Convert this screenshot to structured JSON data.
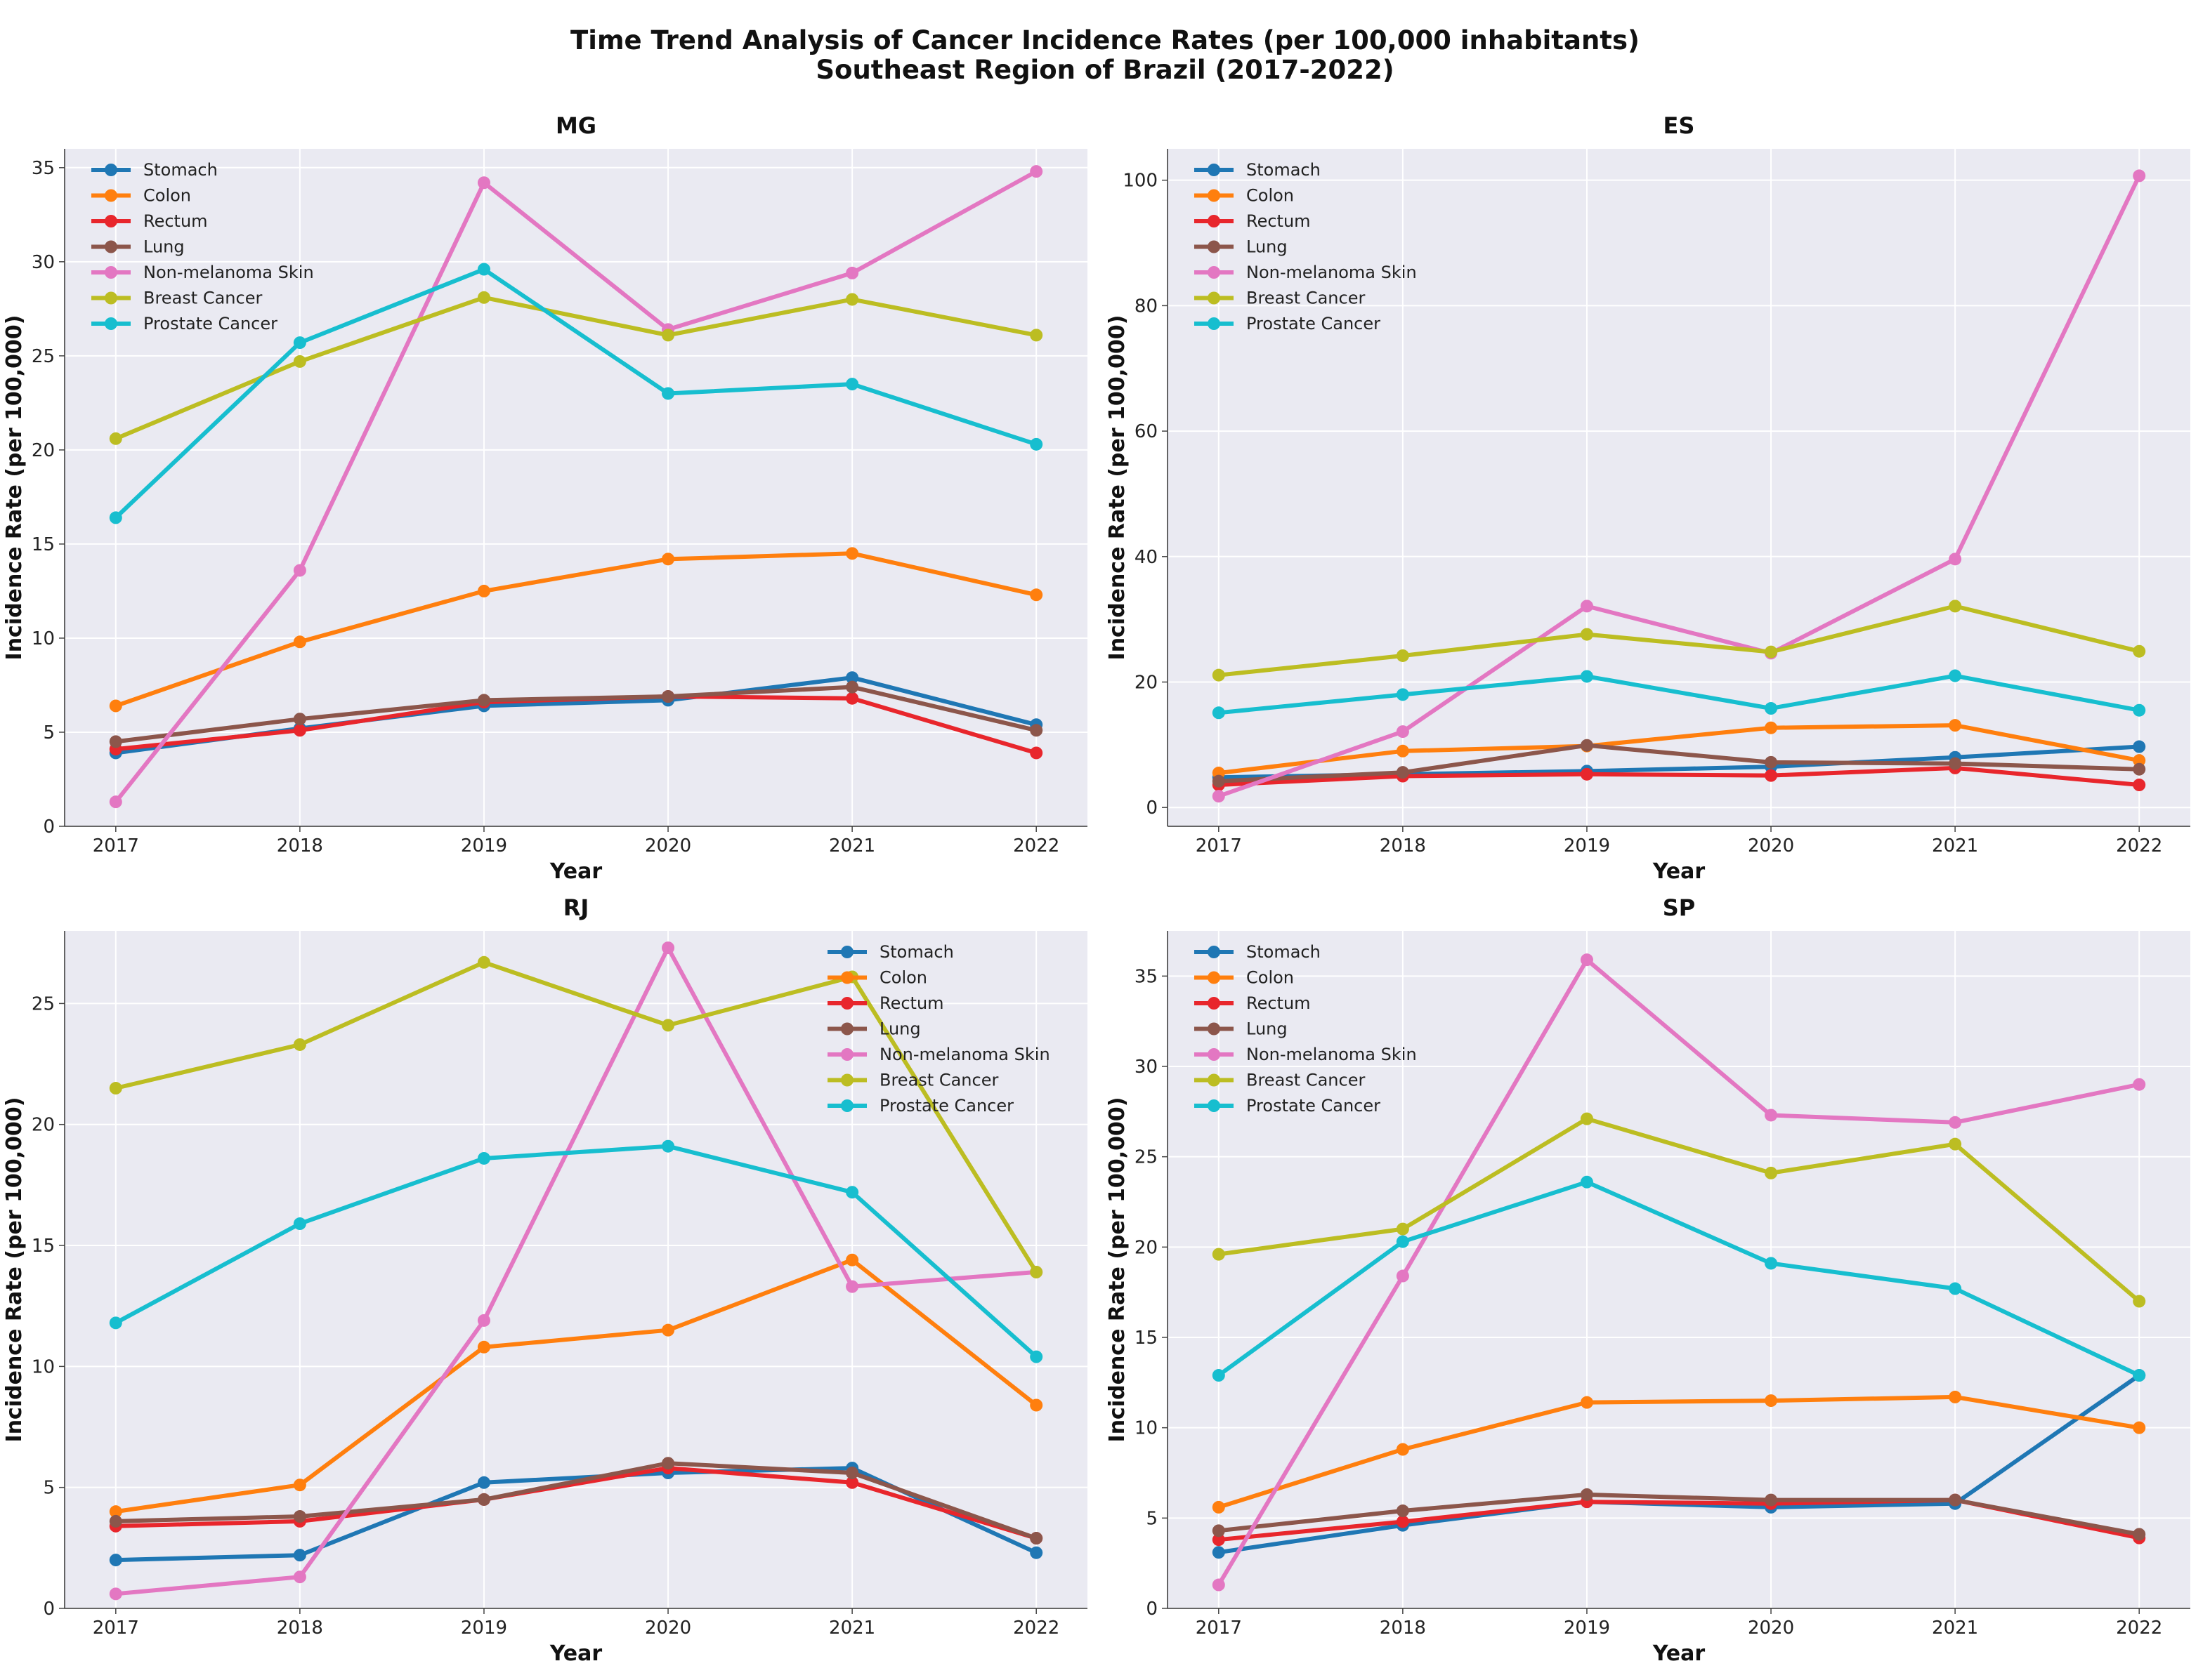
{
  "title_line1": "Time Trend Analysis of Cancer Incidence Rates (per 100,000 inhabitants)",
  "title_line2": "Southeast Region of Brazil (2017-2022)",
  "chart_data": [
    {
      "type": "line",
      "title": "MG",
      "xlabel": "Year",
      "ylabel": "Incidence Rate (per 100,000)",
      "x": [
        "2017",
        "2018",
        "2019",
        "2020",
        "2021",
        "2022"
      ],
      "ylim": [
        0,
        36
      ],
      "yticks": [
        0,
        5,
        10,
        15,
        20,
        25,
        30,
        35
      ],
      "grid": true,
      "legend_loc": "upper-left",
      "series": [
        {
          "name": "Stomach",
          "color": "#1f77b4",
          "values": [
            3.9,
            5.2,
            6.4,
            6.7,
            7.9,
            5.4
          ]
        },
        {
          "name": "Colon",
          "color": "#ff7f0e",
          "values": [
            6.4,
            9.8,
            12.5,
            14.2,
            14.5,
            12.3
          ]
        },
        {
          "name": "Rectum",
          "color": "#e8262c",
          "values": [
            4.1,
            5.1,
            6.6,
            6.9,
            6.8,
            3.9
          ]
        },
        {
          "name": "Lung",
          "color": "#8c564b",
          "values": [
            4.5,
            5.7,
            6.7,
            6.9,
            7.4,
            5.1
          ]
        },
        {
          "name": "Non-melanoma Skin",
          "color": "#e377c2",
          "values": [
            1.3,
            13.6,
            34.2,
            26.4,
            29.4,
            34.8
          ]
        },
        {
          "name": "Breast Cancer",
          "color": "#bcbd22",
          "values": [
            20.6,
            24.7,
            28.1,
            26.1,
            28.0,
            26.1
          ]
        },
        {
          "name": "Prostate Cancer",
          "color": "#17becf",
          "values": [
            16.4,
            25.7,
            29.6,
            23.0,
            23.5,
            20.3
          ]
        }
      ]
    },
    {
      "type": "line",
      "title": "ES",
      "xlabel": "Year",
      "ylabel": "Incidence Rate (per 100,000)",
      "x": [
        "2017",
        "2018",
        "2019",
        "2020",
        "2021",
        "2022"
      ],
      "ylim": [
        -3,
        105
      ],
      "yticks": [
        0,
        20,
        40,
        60,
        80,
        100
      ],
      "grid": true,
      "legend_loc": "upper-left",
      "series": [
        {
          "name": "Stomach",
          "color": "#1f77b4",
          "values": [
            4.8,
            5.3,
            5.8,
            6.5,
            8.0,
            9.7
          ]
        },
        {
          "name": "Colon",
          "color": "#ff7f0e",
          "values": [
            5.5,
            9.0,
            9.8,
            12.7,
            13.1,
            7.5
          ]
        },
        {
          "name": "Rectum",
          "color": "#e8262c",
          "values": [
            3.6,
            5.0,
            5.3,
            5.1,
            6.3,
            3.6
          ]
        },
        {
          "name": "Lung",
          "color": "#8c564b",
          "values": [
            4.2,
            5.6,
            9.9,
            7.2,
            7.0,
            6.1
          ]
        },
        {
          "name": "Non-melanoma Skin",
          "color": "#e377c2",
          "values": [
            1.8,
            12.1,
            32.1,
            24.6,
            39.6,
            100.7
          ]
        },
        {
          "name": "Breast Cancer",
          "color": "#bcbd22",
          "values": [
            21.1,
            24.2,
            27.6,
            24.8,
            32.1,
            24.9
          ]
        },
        {
          "name": "Prostate Cancer",
          "color": "#17becf",
          "values": [
            15.1,
            18.0,
            20.9,
            15.8,
            21.0,
            15.5
          ]
        }
      ]
    },
    {
      "type": "line",
      "title": "RJ",
      "xlabel": "Year",
      "ylabel": "Incidence Rate (per 100,000)",
      "x": [
        "2017",
        "2018",
        "2019",
        "2020",
        "2021",
        "2022"
      ],
      "ylim": [
        0,
        28
      ],
      "yticks": [
        0,
        5,
        10,
        15,
        20,
        25
      ],
      "grid": true,
      "legend_loc": "upper-right",
      "series": [
        {
          "name": "Stomach",
          "color": "#1f77b4",
          "values": [
            2.0,
            2.2,
            5.2,
            5.6,
            5.8,
            2.3
          ]
        },
        {
          "name": "Colon",
          "color": "#ff7f0e",
          "values": [
            4.0,
            5.1,
            10.8,
            11.5,
            14.4,
            8.4
          ]
        },
        {
          "name": "Rectum",
          "color": "#e8262c",
          "values": [
            3.4,
            3.6,
            4.5,
            5.8,
            5.2,
            2.9
          ]
        },
        {
          "name": "Lung",
          "color": "#8c564b",
          "values": [
            3.6,
            3.8,
            4.5,
            6.0,
            5.6,
            2.9
          ]
        },
        {
          "name": "Non-melanoma Skin",
          "color": "#e377c2",
          "values": [
            0.6,
            1.3,
            11.9,
            27.3,
            13.3,
            13.9
          ]
        },
        {
          "name": "Breast Cancer",
          "color": "#bcbd22",
          "values": [
            21.5,
            23.3,
            26.7,
            24.1,
            26.1,
            13.9
          ]
        },
        {
          "name": "Prostate Cancer",
          "color": "#17becf",
          "values": [
            11.8,
            15.9,
            18.6,
            19.1,
            17.2,
            10.4
          ]
        }
      ]
    },
    {
      "type": "line",
      "title": "SP",
      "xlabel": "Year",
      "ylabel": "Incidence Rate (per 100,000)",
      "x": [
        "2017",
        "2018",
        "2019",
        "2020",
        "2021",
        "2022"
      ],
      "ylim": [
        0,
        37.5
      ],
      "yticks": [
        0,
        5,
        10,
        15,
        20,
        25,
        30,
        35
      ],
      "grid": true,
      "legend_loc": "upper-left",
      "series": [
        {
          "name": "Stomach",
          "color": "#1f77b4",
          "values": [
            3.1,
            4.6,
            5.9,
            5.6,
            5.8,
            12.9
          ]
        },
        {
          "name": "Colon",
          "color": "#ff7f0e",
          "values": [
            5.6,
            8.8,
            11.4,
            11.5,
            11.7,
            10.0
          ]
        },
        {
          "name": "Rectum",
          "color": "#e8262c",
          "values": [
            3.8,
            4.8,
            5.9,
            5.8,
            6.0,
            3.9
          ]
        },
        {
          "name": "Lung",
          "color": "#8c564b",
          "values": [
            4.3,
            5.4,
            6.3,
            6.0,
            6.0,
            4.1
          ]
        },
        {
          "name": "Non-melanoma Skin",
          "color": "#e377c2",
          "values": [
            1.3,
            18.4,
            35.9,
            27.3,
            26.9,
            29.0
          ]
        },
        {
          "name": "Breast Cancer",
          "color": "#bcbd22",
          "values": [
            19.6,
            21.0,
            27.1,
            24.1,
            25.7,
            17.0
          ]
        },
        {
          "name": "Prostate Cancer",
          "color": "#17becf",
          "values": [
            12.9,
            20.3,
            23.6,
            19.1,
            17.7,
            12.9
          ]
        }
      ]
    }
  ]
}
